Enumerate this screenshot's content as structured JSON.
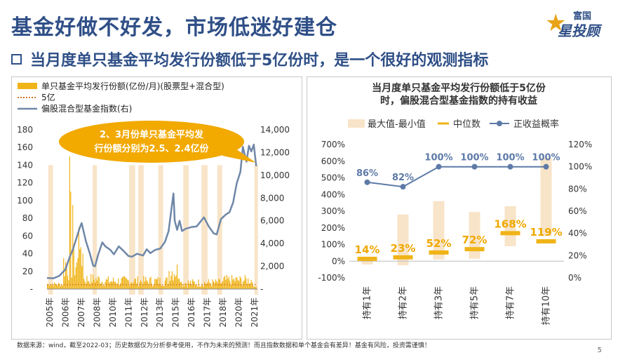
{
  "title": "基金好做不好发，市场低迷好建仓",
  "subtitle": "当月度单只基金平均发行份额低于5亿份时，是一个很好的观测指标",
  "logo": {
    "line1": "富国",
    "line2": "星投顾"
  },
  "footer": "数据来源：wind，截至2022-03；历史数据仅为分析参考使用，不作为未来的预测！而且指数数据和单个基金会有差异！基金有风险，投资需谨慎！",
  "page_number": "5",
  "colors": {
    "title": "#2f4f87",
    "bar": "#f0b418",
    "band": "#f8e4c8",
    "line": "#6f87a8",
    "callout": "#f2a900",
    "dot": "#d0782a",
    "label_orange": "#f0a800",
    "prob": "#5d7aa7"
  },
  "chart_data": [
    {
      "type": "bar+line",
      "legend": [
        "单只基金平均发行份额(亿份/月)(股票型+混合型)",
        "5亿",
        "偏股混合型基金指数(右)"
      ],
      "left_axis": {
        "ylim": [
          0,
          180
        ],
        "ticks": [
          "-",
          "20",
          "40",
          "60",
          "80",
          "100",
          "120",
          "140",
          "160",
          "180"
        ]
      },
      "right_axis": {
        "ylim": [
          0,
          14000
        ],
        "ticks": [
          "-",
          "2,000",
          "4,000",
          "6,000",
          "8,000",
          "10,000",
          "12,000",
          "14,000"
        ]
      },
      "x_ticks": [
        "2005年",
        "2006年",
        "2007年",
        "2008年",
        "2010年",
        "2011年",
        "2012年",
        "2013年",
        "2015年",
        "2016年",
        "2017年",
        "2018年",
        "2020年",
        "2021年"
      ],
      "threshold": 5,
      "callout": {
        "line1": "2、3月份单只基金平均发",
        "line2": "行份额分别为2.5、2.4亿份"
      },
      "bands_years": [
        [
          2005.1,
          2005.5
        ],
        [
          2008.75,
          2009.1
        ],
        [
          2011.75,
          2012.25
        ],
        [
          2012.5,
          2012.95
        ],
        [
          2014.15,
          2014.55
        ],
        [
          2016.2,
          2016.65
        ],
        [
          2017.7,
          2018.2
        ],
        [
          2019.0,
          2019.4
        ],
        [
          2022.05,
          2022.25
        ]
      ],
      "index_series": {
        "x": [
          2005.0,
          2005.5,
          2006.0,
          2006.5,
          2006.9,
          2007.1,
          2007.4,
          2007.7,
          2007.85,
          2008.2,
          2008.5,
          2008.8,
          2008.95,
          2009.2,
          2009.55,
          2009.8,
          2010.2,
          2010.5,
          2010.9,
          2011.3,
          2011.7,
          2012.0,
          2012.4,
          2012.9,
          2013.2,
          2013.5,
          2013.9,
          2014.3,
          2014.7,
          2015.0,
          2015.2,
          2015.4,
          2015.5,
          2015.7,
          2015.9,
          2016.1,
          2016.4,
          2016.9,
          2017.3,
          2017.9,
          2018.3,
          2018.7,
          2018.95,
          2019.3,
          2019.7,
          2020.0,
          2020.3,
          2020.6,
          2020.9,
          2021.1,
          2021.4,
          2021.6,
          2021.8,
          2022.0,
          2022.2
        ],
        "y": [
          980,
          940,
          1150,
          1700,
          2900,
          3400,
          4400,
          5400,
          5800,
          4200,
          3200,
          2050,
          2000,
          3000,
          4100,
          3750,
          3450,
          3050,
          3750,
          3350,
          2900,
          2850,
          3100,
          2950,
          3500,
          3150,
          3450,
          3550,
          4150,
          5100,
          6800,
          8400,
          6000,
          5200,
          6000,
          5100,
          5300,
          5450,
          5500,
          6300,
          5500,
          4900,
          4800,
          6150,
          6550,
          6750,
          7600,
          9300,
          10300,
          12500,
          11200,
          12600,
          12100,
          12700,
          10800
        ]
      },
      "bar_note": "monthly values approximated from visual estimate"
    },
    {
      "type": "floating-bar+line",
      "title_line1": "当月度单只基金平均发行份额低于5亿份",
      "title_line2": "时，偏股混合型基金指数的持有收益",
      "legend": [
        "最大值-最小值",
        "中位数",
        "正收益概率"
      ],
      "categories": [
        "持有1年",
        "持有2年",
        "持有3年",
        "持有5年",
        "持有7年",
        "持有10年"
      ],
      "left_axis": {
        "ylim": [
          -100,
          700
        ],
        "ticks": [
          "-100%",
          "0%",
          "100%",
          "200%",
          "300%",
          "400%",
          "500%",
          "600%",
          "700%"
        ]
      },
      "right_axis": {
        "ylim": [
          0,
          120
        ],
        "ticks": [
          "0%",
          "20%",
          "40%",
          "60%",
          "80%",
          "100%",
          "120%"
        ]
      },
      "range_min": [
        -20,
        -25,
        10,
        15,
        90,
        150
      ],
      "range_max": [
        25,
        280,
        360,
        295,
        330,
        620
      ],
      "median": [
        14,
        23,
        52,
        72,
        168,
        119
      ],
      "median_labels": [
        "14%",
        "23%",
        "52%",
        "72%",
        "168%",
        "119%"
      ],
      "positive_prob": [
        86,
        82,
        100,
        100,
        100,
        100
      ],
      "prob_labels": [
        "86%",
        "82%",
        "100%",
        "100%",
        "100%",
        "100%"
      ]
    }
  ]
}
